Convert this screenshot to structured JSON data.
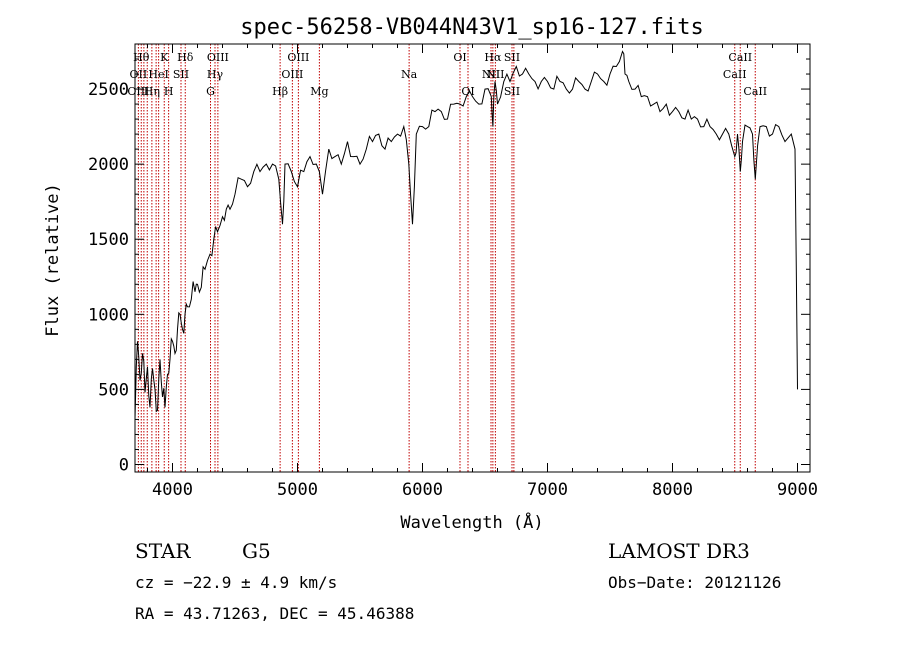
{
  "chart_data": {
    "type": "line",
    "title": "spec-56258-VB044N43V1_sp16-127.fits",
    "xlabel": "Wavelength (Å)",
    "ylabel": "Flux (relative)",
    "xlim": [
      3700,
      9100
    ],
    "ylim": [
      -50,
      2800
    ],
    "xticks": [
      4000,
      5000,
      6000,
      7000,
      8000,
      9000
    ],
    "yticks": [
      0,
      500,
      1000,
      1500,
      2000,
      2500
    ],
    "series": [
      {
        "name": "flux",
        "x": [
          3700,
          3720,
          3740,
          3760,
          3780,
          3800,
          3820,
          3840,
          3860,
          3880,
          3900,
          3920,
          3940,
          3960,
          3980,
          4000,
          4020,
          4040,
          4060,
          4080,
          4100,
          4120,
          4150,
          4180,
          4200,
          4230,
          4260,
          4300,
          4330,
          4360,
          4400,
          4430,
          4460,
          4500,
          4550,
          4600,
          4650,
          4700,
          4750,
          4800,
          4850,
          4880,
          4900,
          4950,
          5000,
          5050,
          5100,
          5150,
          5200,
          5250,
          5300,
          5350,
          5400,
          5450,
          5500,
          5550,
          5600,
          5650,
          5700,
          5750,
          5800,
          5850,
          5890,
          5920,
          5950,
          6000,
          6050,
          6100,
          6150,
          6200,
          6250,
          6300,
          6350,
          6400,
          6450,
          6500,
          6550,
          6563,
          6580,
          6600,
          6650,
          6700,
          6750,
          6800,
          6850,
          6900,
          6950,
          7000,
          7050,
          7100,
          7150,
          7200,
          7250,
          7300,
          7350,
          7400,
          7450,
          7500,
          7550,
          7600,
          7620,
          7650,
          7700,
          7750,
          7800,
          7850,
          7900,
          7950,
          8000,
          8050,
          8100,
          8150,
          8200,
          8250,
          8300,
          8350,
          8400,
          8450,
          8498,
          8520,
          8542,
          8560,
          8600,
          8640,
          8662,
          8700,
          8750,
          8800,
          8850,
          8900,
          8950,
          8980,
          8990,
          9000
        ],
        "y": [
          300,
          820,
          560,
          740,
          480,
          650,
          380,
          640,
          500,
          360,
          700,
          450,
          380,
          600,
          700,
          820,
          740,
          900,
          1000,
          900,
          1000,
          1050,
          1100,
          1150,
          1200,
          1180,
          1300,
          1400,
          1500,
          1550,
          1650,
          1700,
          1700,
          1800,
          1900,
          1850,
          1950,
          1950,
          2000,
          2000,
          1900,
          1600,
          2000,
          1950,
          1850,
          1950,
          2050,
          2000,
          1800,
          2100,
          2050,
          2000,
          2150,
          2050,
          2000,
          2100,
          2150,
          2200,
          2100,
          2150,
          2200,
          2250,
          2000,
          1600,
          2200,
          2250,
          2250,
          2350,
          2350,
          2300,
          2400,
          2400,
          2450,
          2450,
          2400,
          2500,
          2450,
          2250,
          2550,
          2400,
          2550,
          2550,
          2650,
          2600,
          2600,
          2550,
          2550,
          2550,
          2500,
          2550,
          2500,
          2500,
          2550,
          2500,
          2550,
          2600,
          2550,
          2600,
          2650,
          2750,
          2600,
          2550,
          2500,
          2450,
          2450,
          2400,
          2350,
          2400,
          2350,
          2350,
          2300,
          2300,
          2300,
          2250,
          2250,
          2200,
          2200,
          2200,
          2050,
          2200,
          1950,
          2150,
          2250,
          2200,
          1900,
          2250,
          2250,
          2200,
          2250,
          2150,
          2200,
          2100,
          1300,
          500
        ]
      }
    ],
    "lines": [
      {
        "x": 3727,
        "labels": [
          "",
          "OII",
          "OIII"
        ]
      },
      {
        "x": 3750,
        "labels": [
          "Hθ",
          "",
          ""
        ]
      },
      {
        "x": 3771,
        "labels": [
          "",
          "",
          ""
        ]
      },
      {
        "x": 3798,
        "labels": [
          "",
          "",
          ""
        ]
      },
      {
        "x": 3835,
        "labels": [
          "",
          "",
          "Hη"
        ]
      },
      {
        "x": 3869,
        "labels": [
          "",
          "",
          ""
        ]
      },
      {
        "x": 3889,
        "labels": [
          "",
          "HeI",
          ""
        ]
      },
      {
        "x": 3934,
        "labels": [
          "K",
          "",
          ""
        ]
      },
      {
        "x": 3969,
        "labels": [
          "",
          "",
          "H"
        ]
      },
      {
        "x": 4068,
        "labels": [
          "",
          "SII",
          ""
        ]
      },
      {
        "x": 4102,
        "labels": [
          "Hδ",
          "",
          ""
        ]
      },
      {
        "x": 4304,
        "labels": [
          "",
          "",
          "G"
        ]
      },
      {
        "x": 4340,
        "labels": [
          "",
          "Hγ",
          ""
        ]
      },
      {
        "x": 4363,
        "labels": [
          "OIII",
          "",
          ""
        ]
      },
      {
        "x": 4861,
        "labels": [
          "",
          "",
          "Hβ"
        ]
      },
      {
        "x": 4959,
        "labels": [
          "",
          "OIII",
          ""
        ]
      },
      {
        "x": 5007,
        "labels": [
          "OIII",
          "",
          ""
        ]
      },
      {
        "x": 5175,
        "labels": [
          "",
          "",
          "Mg"
        ]
      },
      {
        "x": 5893,
        "labels": [
          "",
          "Na",
          ""
        ]
      },
      {
        "x": 6300,
        "labels": [
          "OI",
          "",
          ""
        ]
      },
      {
        "x": 6364,
        "labels": [
          "",
          "",
          "OI"
        ]
      },
      {
        "x": 6548,
        "labels": [
          "",
          "NII",
          ""
        ]
      },
      {
        "x": 6563,
        "labels": [
          "Hα",
          "",
          ""
        ]
      },
      {
        "x": 6583,
        "labels": [
          "",
          "NII",
          ""
        ]
      },
      {
        "x": 6716,
        "labels": [
          "SII",
          "",
          "SII"
        ]
      },
      {
        "x": 6731,
        "labels": [
          "",
          "",
          ""
        ]
      },
      {
        "x": 8498,
        "labels": [
          "",
          "CaII",
          ""
        ]
      },
      {
        "x": 8542,
        "labels": [
          "CaII",
          "",
          ""
        ]
      },
      {
        "x": 8662,
        "labels": [
          "",
          "",
          "CaII"
        ]
      }
    ]
  },
  "info": {
    "object_class": "STAR",
    "subclass": "G5",
    "survey": "LAMOST DR3",
    "redshift": "cz = −22.9 ± 4.9 km/s",
    "obs_date": "Obs−Date: 20121126",
    "coords": "RA =  43.71263, DEC =  45.46388"
  }
}
